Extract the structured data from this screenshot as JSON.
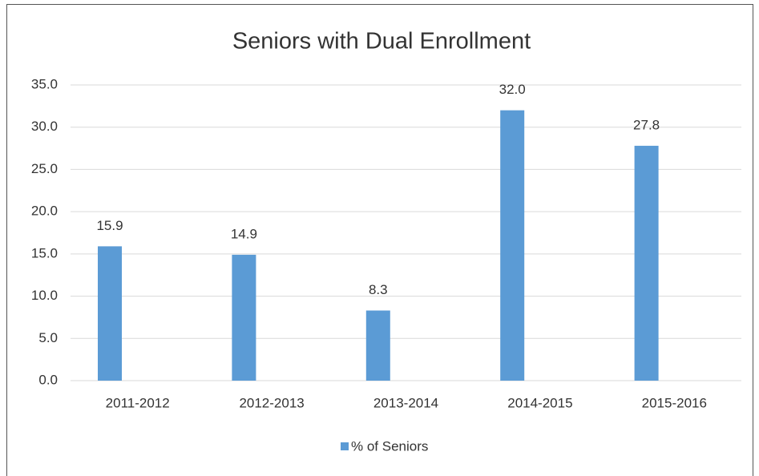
{
  "chart_data": {
    "type": "bar",
    "title": "Seniors with Dual Enrollment",
    "categories": [
      "2011-2012",
      "2012-2013",
      "2013-2014",
      "2014-2015",
      "2015-2016"
    ],
    "series": [
      {
        "name": "% of Seniors",
        "color": "#5b9bd5",
        "values": [
          15.9,
          14.9,
          8.3,
          32.0,
          27.8
        ],
        "value_labels": [
          "15.9",
          "14.9",
          "8.3",
          "32.0",
          "27.8"
        ]
      }
    ],
    "ylim": [
      0,
      35
    ],
    "yticks": [
      {
        "value": 0,
        "label": "0.0"
      },
      {
        "value": 5,
        "label": "5.0"
      },
      {
        "value": 10,
        "label": "10.0"
      },
      {
        "value": 15,
        "label": "15.0"
      },
      {
        "value": 20,
        "label": "20.0"
      },
      {
        "value": 25,
        "label": "25.0"
      },
      {
        "value": 30,
        "label": "30.0"
      },
      {
        "value": 35,
        "label": "35.0"
      }
    ],
    "grid": true,
    "legend": "bottom"
  }
}
